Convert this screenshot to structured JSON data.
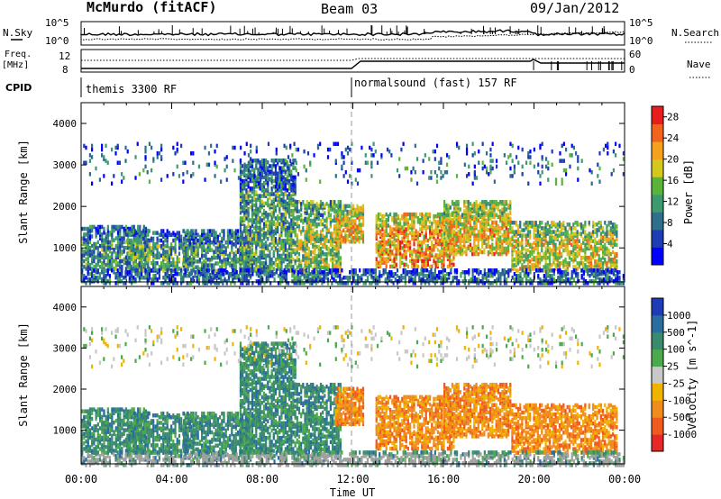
{
  "header": {
    "station": "McMurdo (fitACF)",
    "beam": "Beam 03",
    "date": "09/Jan/2012"
  },
  "top_panels": {
    "nsky_label": "N.Sky",
    "nsearch_label": "N.Search",
    "noise_ticks_left": [
      "10^5",
      "10^0"
    ],
    "noise_ticks_right": [
      "10^5",
      "10^0"
    ],
    "freq_label_1": "Freq.",
    "freq_label_2": "[MHz]",
    "freq_ticks": [
      "12",
      "8"
    ],
    "nave_label": "Nave",
    "nave_ticks": [
      "60",
      "0"
    ],
    "cpid_label": "CPID",
    "cpid_segments": [
      "themis 3300 RF",
      "normalsound (fast) 157 RF"
    ]
  },
  "chart_data": [
    {
      "type": "heatmap",
      "title": "",
      "xlabel": "",
      "ylabel": "Slant Range [km]",
      "y_ticks": [
        "1000",
        "2000",
        "3000",
        "4000"
      ],
      "ylim": [
        180,
        4500
      ],
      "colorbar_label": "Power [dB]",
      "colorbar_ticks": [
        "4",
        "8",
        "12",
        "16",
        "20",
        "24",
        "28"
      ],
      "colorbar_range": [
        0,
        30
      ],
      "colorbar_colors": [
        "#0000ff",
        "#1e3cb4",
        "#2f6e8c",
        "#3c9a6e",
        "#5ab43c",
        "#d2c81e",
        "#f5a01e",
        "#f0641e",
        "#e61e1e"
      ]
    },
    {
      "type": "heatmap",
      "title": "",
      "xlabel": "Time UT",
      "ylabel": "Slant Range [km]",
      "y_ticks": [
        "1000",
        "2000",
        "3000",
        "4000"
      ],
      "ylim": [
        180,
        4500
      ],
      "x_ticks": [
        "00:00",
        "04:00",
        "08:00",
        "12:00",
        "16:00",
        "20:00",
        "00:00"
      ],
      "colorbar_label": "Velocity [m s^-1]",
      "colorbar_ticks": [
        "1000",
        "500",
        "100",
        "25",
        "-25",
        "-100",
        "-500",
        "-1000"
      ],
      "colorbar_colors": [
        "#1e3cb4",
        "#2a6ea0",
        "#3a8a6e",
        "#4caa4c",
        "#c8c8c8",
        "#f0b400",
        "#f08c1e",
        "#f05a1e",
        "#e62828"
      ],
      "ground_scatter_color": "#a0a0a0"
    }
  ]
}
